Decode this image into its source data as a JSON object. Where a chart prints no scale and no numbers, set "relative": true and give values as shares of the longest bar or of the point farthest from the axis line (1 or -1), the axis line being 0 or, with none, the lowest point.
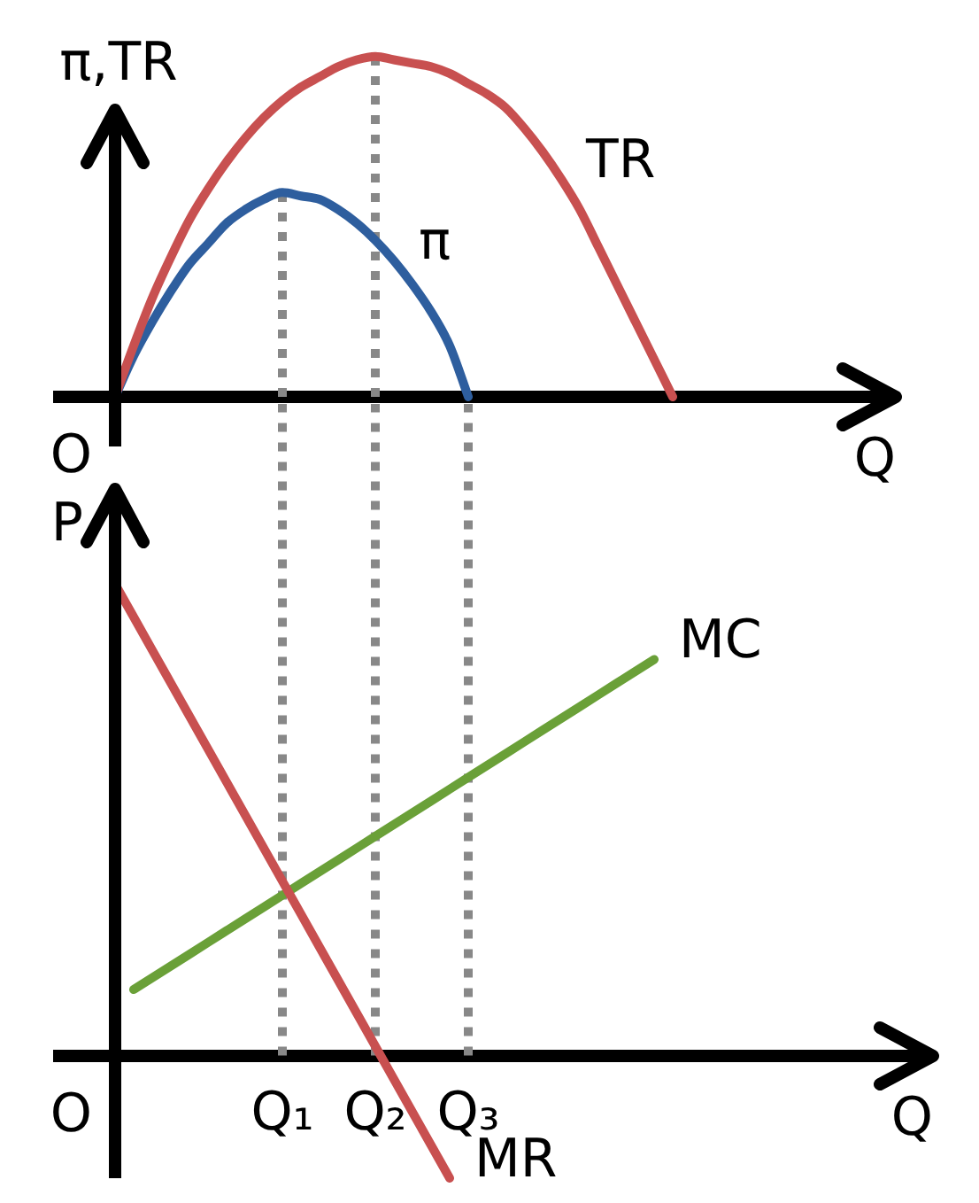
{
  "chart_data": [
    {
      "type": "line",
      "ylabel": "π,TR",
      "xlabel": "Q",
      "relative": true,
      "tick_labels": false,
      "marker": "none",
      "annotations": [
        "O"
      ],
      "categories": [
        null,
        null,
        null,
        null,
        null,
        null,
        null,
        null,
        null,
        null,
        null,
        null,
        "Q₁",
        null,
        null,
        null,
        null,
        "Q₂",
        null,
        null,
        null,
        null,
        "Q₃",
        null,
        null,
        null,
        null,
        null,
        null,
        null,
        null,
        null,
        null,
        null,
        null,
        null,
        null,
        null,
        null,
        null,
        null,
        null,
        null,
        null,
        null,
        null
      ],
      "series": [
        {
          "name": "TR",
          "color": "#c85050",
          "values": [
            null,
            null,
            null,
            0,
            0.15,
            0.29,
            0.41,
            0.52,
            0.61,
            0.69,
            0.76,
            0.82,
            0.87,
            0.91,
            0.94,
            0.97,
            0.99,
            1,
            0.99,
            0.98,
            0.97,
            0.95,
            0.92,
            0.89,
            0.85,
            0.79,
            0.72,
            0.64,
            0.55,
            0.44,
            0.33,
            0.22,
            0.11,
            0,
            null,
            null,
            null,
            null,
            null,
            null,
            null,
            null,
            null,
            null,
            null,
            null
          ]
        },
        {
          "name": "π",
          "color": "#2e5e9e",
          "values": [
            null,
            null,
            null,
            0,
            0.12,
            0.22,
            0.31,
            0.39,
            0.45,
            0.51,
            0.55,
            0.58,
            0.6,
            0.59,
            0.58,
            0.55,
            0.51,
            0.46,
            0.4,
            0.33,
            0.25,
            0.15,
            0,
            null,
            null,
            null,
            null,
            null,
            null,
            null,
            null,
            null,
            null,
            null,
            null,
            null,
            null,
            null,
            null,
            null,
            null,
            null,
            null,
            null,
            null,
            null
          ]
        },
        {
          "color": "#888888",
          "line_style": "dotted",
          "x": [
            "Q₁",
            "Q₁"
          ],
          "values": [
            0,
            0.6
          ]
        },
        {
          "color": "#888888",
          "line_style": "dotted",
          "x": [
            "Q₂",
            "Q₂"
          ],
          "values": [
            0,
            1
          ]
        }
      ]
    },
    {
      "type": "line",
      "ylabel": "P",
      "xlabel": "Q",
      "relative": true,
      "tick_labels": "x",
      "marker": "none",
      "annotations": [
        "O"
      ],
      "categories": [
        null,
        null,
        null,
        null,
        null,
        null,
        null,
        null,
        null,
        null,
        null,
        null,
        "Q₁",
        null,
        null,
        null,
        null,
        "Q₂",
        null,
        null,
        null,
        null,
        "Q₃",
        null,
        null,
        null,
        null,
        null,
        null,
        null,
        null,
        null,
        null,
        null,
        null,
        null,
        null,
        null,
        null,
        null,
        null,
        null,
        null,
        null,
        null,
        null,
        null,
        null
      ],
      "ref_lines": [
        {
          "axis": "x",
          "value": "Q₁",
          "color": "#888888",
          "line_style": "dotted"
        },
        {
          "axis": "x",
          "value": "Q₂",
          "color": "#888888",
          "line_style": "dotted"
        },
        {
          "axis": "x",
          "value": "Q₃",
          "color": "#888888",
          "line_style": "dotted"
        }
      ],
      "series": [
        {
          "name": "MR",
          "color": "#c85050",
          "values": [
            null,
            null,
            null,
            1,
            0.93,
            0.86,
            0.79,
            0.72,
            0.65,
            0.58,
            0.51,
            0.44,
            0.37,
            0.3,
            0.23,
            0.16,
            0.09,
            0.02,
            -0.05,
            -0.12,
            -0.19,
            -0.26,
            null,
            null,
            null,
            null,
            null,
            null,
            null,
            null,
            null,
            null,
            null,
            null,
            null,
            null,
            null,
            null,
            null,
            null,
            null,
            null,
            null,
            null,
            null,
            null,
            null,
            null
          ]
        },
        {
          "name": "MC",
          "color": "#6aa038",
          "values": [
            null,
            null,
            null,
            null,
            0.14,
            0.165,
            0.19,
            0.215,
            0.24,
            0.265,
            0.29,
            0.315,
            0.34,
            0.365,
            0.39,
            0.415,
            0.44,
            0.465,
            0.49,
            0.515,
            0.54,
            0.565,
            0.59,
            0.615,
            0.64,
            0.665,
            0.69,
            0.715,
            0.74,
            0.765,
            0.79,
            0.815,
            0.84,
            null,
            null,
            null,
            null,
            null,
            null,
            null,
            null,
            null,
            null,
            null,
            null,
            null,
            null,
            null
          ]
        }
      ]
    }
  ]
}
